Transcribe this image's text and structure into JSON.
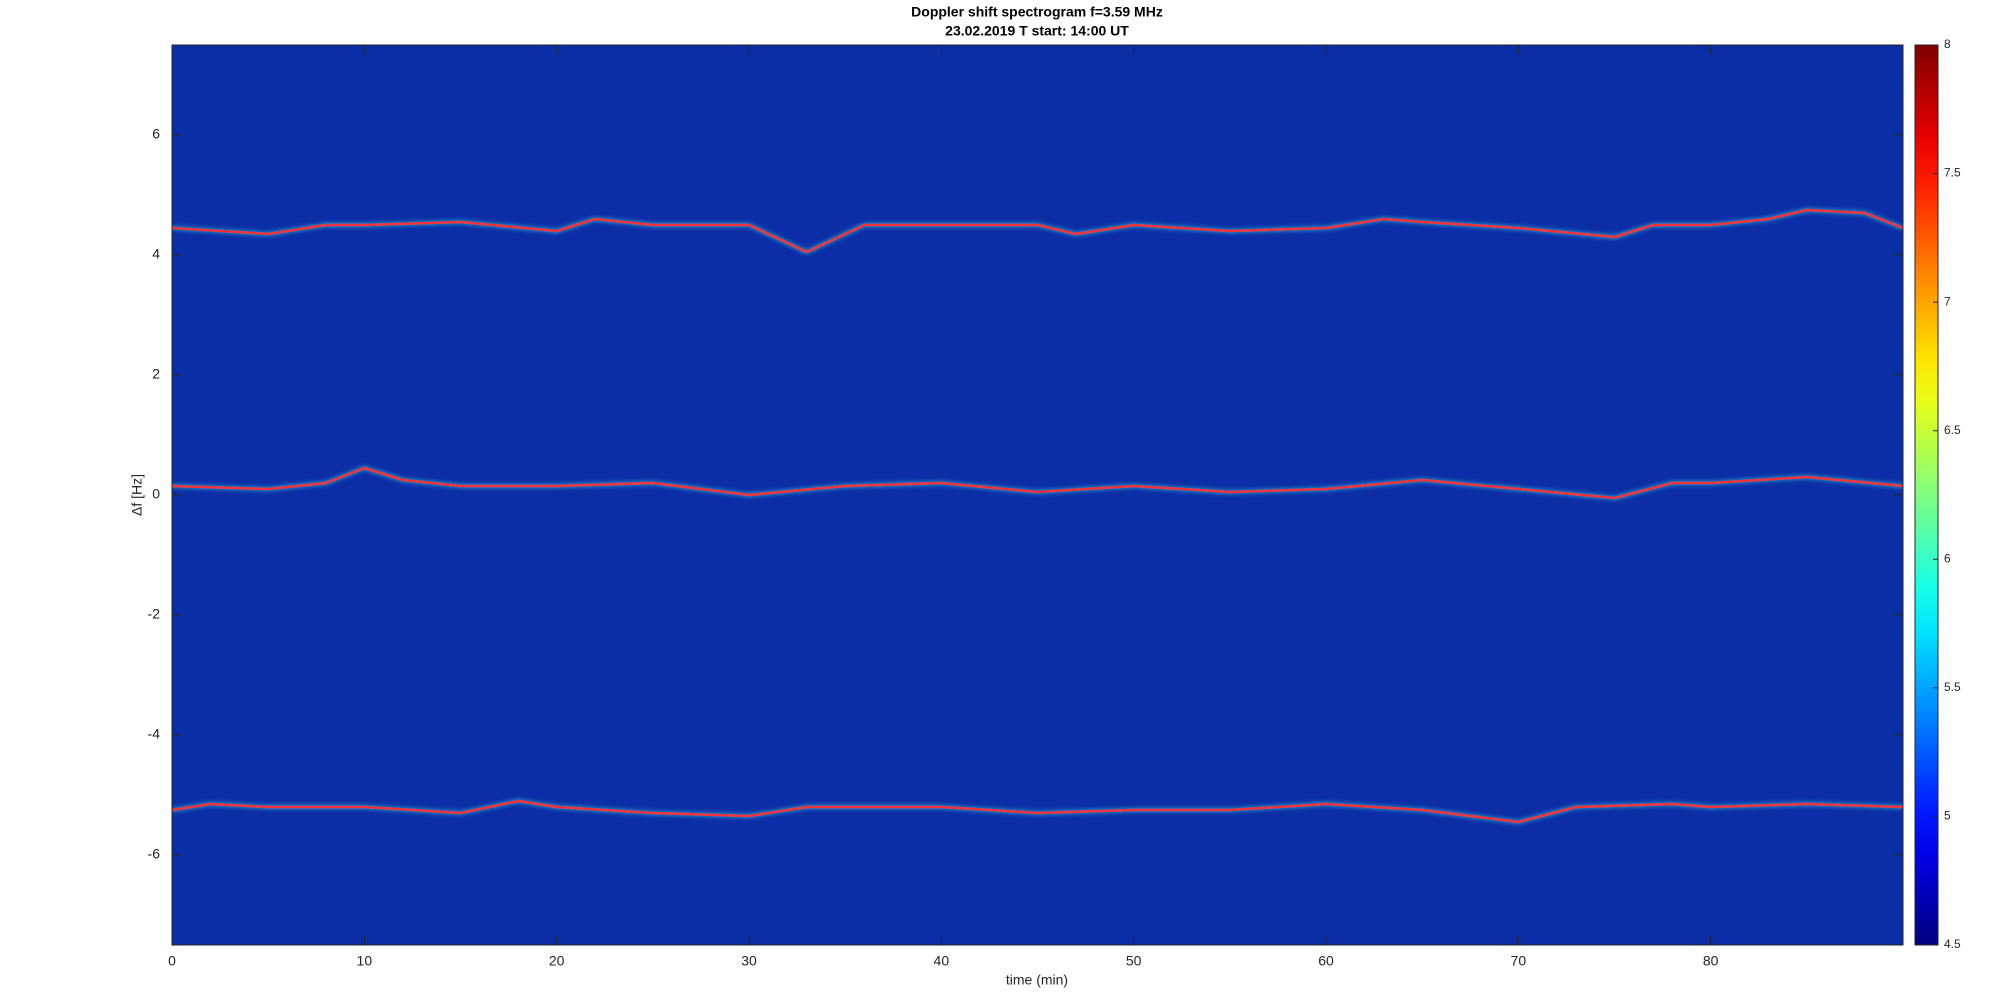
{
  "chart_data": {
    "type": "spectrogram",
    "title": "Doppler shift spectrogram f=3.59 MHz",
    "subtitle": "23.02.2019   T start: 14:00 UT",
    "xlabel": "time (min)",
    "ylabel": "Δf [Hz]",
    "xlim": [
      0,
      90
    ],
    "ylim": [
      -7.5,
      7.5
    ],
    "xticks": [
      0,
      10,
      20,
      30,
      40,
      50,
      60,
      70,
      80
    ],
    "yticks": [
      -6,
      -4,
      -2,
      0,
      2,
      4,
      6
    ],
    "background": "#0b2da6",
    "colormap": "jet",
    "clim": [
      4.5,
      8
    ],
    "cticks": [
      4.5,
      5,
      5.5,
      6,
      6.5,
      7,
      7.5,
      8
    ],
    "series": [
      {
        "color": "#f0303a",
        "x": [
          0,
          5,
          8,
          10,
          15,
          20,
          22,
          25,
          30,
          33,
          36,
          40,
          45,
          47,
          50,
          55,
          60,
          63,
          65,
          70,
          75,
          77,
          80,
          83,
          85,
          88,
          90
        ],
        "values": [
          4.45,
          4.35,
          4.5,
          4.5,
          4.55,
          4.4,
          4.6,
          4.5,
          4.5,
          4.05,
          4.5,
          4.5,
          4.5,
          4.35,
          4.5,
          4.4,
          4.45,
          4.6,
          4.55,
          4.45,
          4.3,
          4.5,
          4.5,
          4.6,
          4.75,
          4.7,
          4.45
        ]
      },
      {
        "color": "#f0303a",
        "x": [
          0,
          5,
          8,
          10,
          12,
          15,
          20,
          25,
          30,
          35,
          40,
          45,
          50,
          55,
          60,
          65,
          70,
          75,
          78,
          80,
          85,
          90
        ],
        "values": [
          0.15,
          0.1,
          0.2,
          0.45,
          0.25,
          0.15,
          0.15,
          0.2,
          0.0,
          0.15,
          0.2,
          0.05,
          0.15,
          0.05,
          0.1,
          0.25,
          0.1,
          -0.05,
          0.2,
          0.2,
          0.3,
          0.15
        ]
      },
      {
        "color": "#f0303a",
        "x": [
          0,
          2,
          5,
          10,
          15,
          18,
          20,
          25,
          30,
          33,
          40,
          45,
          50,
          55,
          60,
          65,
          70,
          73,
          78,
          80,
          85,
          90
        ],
        "values": [
          -5.25,
          -5.15,
          -5.2,
          -5.2,
          -5.3,
          -5.1,
          -5.2,
          -5.3,
          -5.35,
          -5.2,
          -5.2,
          -5.3,
          -5.25,
          -5.25,
          -5.15,
          -5.25,
          -5.45,
          -5.2,
          -5.15,
          -5.2,
          -5.15,
          -5.2
        ]
      }
    ]
  }
}
